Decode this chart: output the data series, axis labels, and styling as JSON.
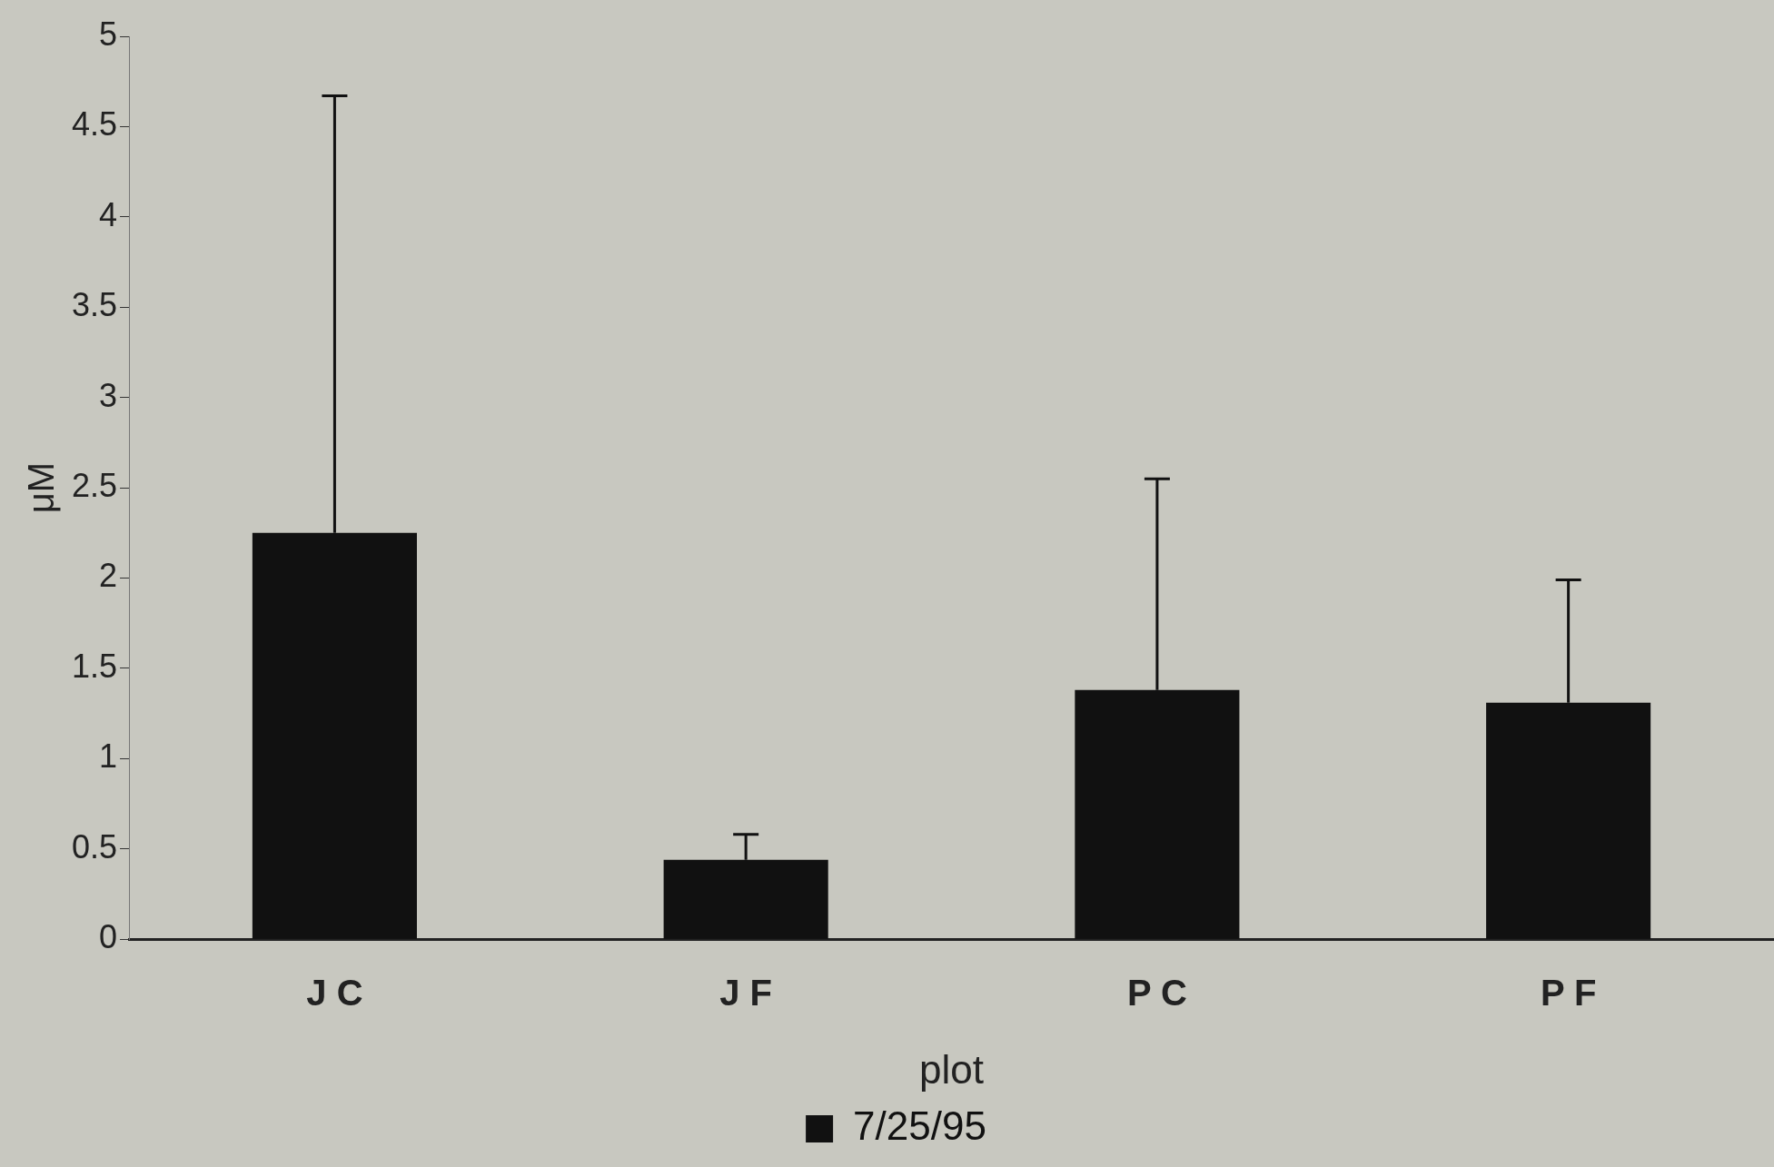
{
  "chart_data": {
    "type": "bar",
    "xlabel": "plot",
    "ylabel": "μM",
    "categories": [
      "J C",
      "J F",
      "P C",
      "P F"
    ],
    "series": [
      {
        "name": "7/25/95",
        "color": "#111111",
        "values": [
          2.25,
          0.44,
          1.38,
          1.31
        ],
        "errors": [
          [
            2.25,
            4.67
          ],
          [
            0.44,
            0.58
          ],
          [
            1.38,
            2.55
          ],
          [
            1.31,
            1.99
          ]
        ]
      }
    ],
    "ylim": [
      0,
      5
    ],
    "yticks": [
      0,
      0.5,
      1,
      1.5,
      2,
      2.5,
      3,
      3.5,
      4,
      4.5,
      5
    ],
    "grid": false,
    "legend": "bottom"
  }
}
